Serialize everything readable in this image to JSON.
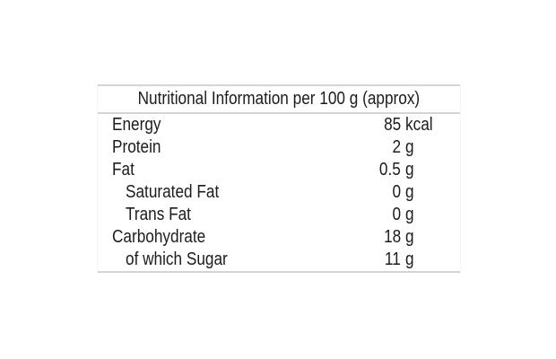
{
  "page": {
    "background_color": "#ffffff"
  },
  "table": {
    "title": "Nutritional Information per 100 g (approx)",
    "colors": {
      "text": "#1c1c1c",
      "rule": "#d4d4d4"
    },
    "rows": [
      {
        "label": "Energy",
        "value": "85",
        "unit": "kcal",
        "indent": false
      },
      {
        "label": "Protein",
        "value": "2",
        "unit": "g",
        "indent": false
      },
      {
        "label": "Fat",
        "value": "0.5",
        "unit": "g",
        "indent": false
      },
      {
        "label": "Saturated Fat",
        "value": "0",
        "unit": "g",
        "indent": true
      },
      {
        "label": "Trans Fat",
        "value": "0",
        "unit": "g",
        "indent": true
      },
      {
        "label": "Carbohydrate",
        "value": "18",
        "unit": "g",
        "indent": false
      },
      {
        "label": "of which Sugar",
        "value": "11",
        "unit": "g",
        "indent": true
      }
    ]
  }
}
